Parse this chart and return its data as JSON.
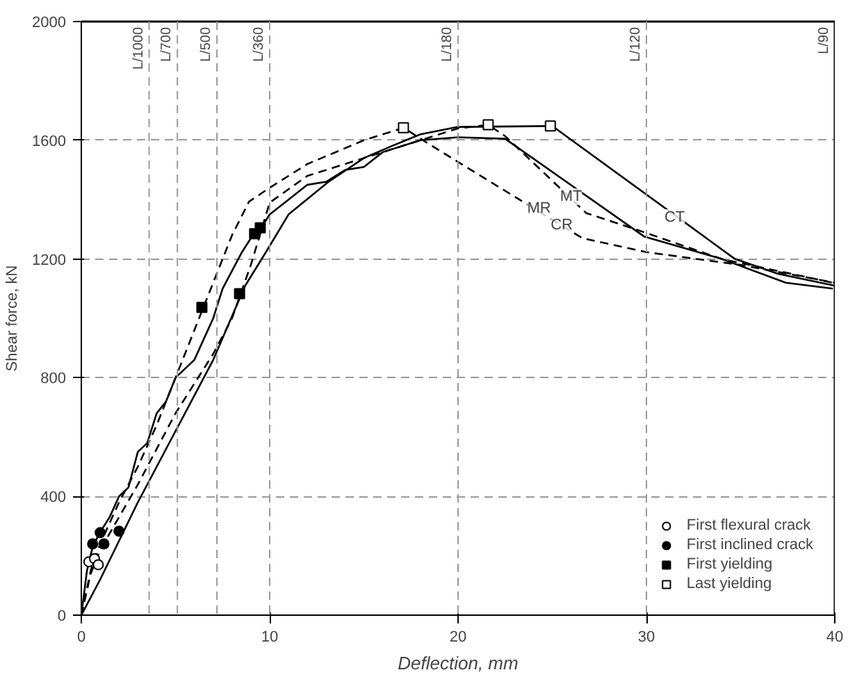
{
  "chart_data": {
    "type": "line",
    "xlabel": "Deflection, mm",
    "ylabel": "Shear force, kN",
    "xlim": [
      0,
      40
    ],
    "ylim": [
      0,
      2000
    ],
    "xticks": [
      0,
      10,
      20,
      30,
      40
    ],
    "yticks": [
      0,
      400,
      800,
      1200,
      1600,
      2000
    ],
    "grid": "y",
    "legend": "bottom right",
    "series": [
      {
        "color": "#000000",
        "line_style": "solid",
        "x": [
          0,
          1,
          2,
          3,
          4,
          5,
          6,
          7,
          8.7,
          9.8,
          11,
          13.1,
          15,
          16.5,
          18,
          20,
          25,
          34.7,
          37,
          40
        ],
        "values": [
          0,
          120,
          250,
          380,
          500,
          620,
          740,
          860,
          1110,
          1223,
          1350,
          1459,
          1540,
          1581,
          1620,
          1645,
          1648,
          1200,
          1150,
          1110
        ]
      },
      {
        "color": "#000000",
        "line_style": "solid",
        "x": [
          0,
          0.3,
          0.6,
          1,
          1.5,
          2,
          2.5,
          3,
          3.5,
          4,
          4.5,
          5,
          5.5,
          6,
          6.5,
          7,
          7.5,
          8,
          8.5,
          9,
          9.5,
          10,
          11,
          12,
          13,
          14,
          15,
          16,
          18,
          20,
          22.5,
          29.9,
          34,
          37.4,
          39.9
        ],
        "values": [
          0,
          150,
          230,
          280,
          330,
          400,
          430,
          550,
          580,
          680,
          720,
          800,
          830,
          860,
          930,
          1000,
          1100,
          1160,
          1220,
          1270,
          1300,
          1350,
          1400,
          1450,
          1460,
          1500,
          1510,
          1560,
          1600,
          1610,
          1605,
          1275,
          1200,
          1120,
          1100
        ]
      },
      {
        "color": "#000000",
        "line_style": "dashed",
        "x": [
          0,
          0.5,
          1,
          2,
          3,
          4,
          5,
          6,
          7,
          8,
          9,
          10,
          12,
          15,
          18,
          20,
          21.6,
          22.5,
          26.8,
          29.7,
          34,
          39.9
        ],
        "values": [
          0,
          140,
          220,
          330,
          440,
          560,
          680,
          780,
          880,
          1000,
          1180,
          1390,
          1480,
          1540,
          1600,
          1640,
          1652,
          1614,
          1355,
          1294,
          1200,
          1120
        ]
      },
      {
        "color": "#000000",
        "line_style": "dashed",
        "x": [
          0,
          0.5,
          1,
          2,
          3,
          4,
          5,
          6,
          6.5,
          7.5,
          8,
          8.9,
          10,
          12,
          15,
          17.1,
          19.2,
          26.6,
          30,
          35,
          40
        ],
        "values": [
          0,
          150,
          240,
          380,
          500,
          640,
          800,
          960,
          1040,
          1200,
          1280,
          1393,
          1440,
          1520,
          1600,
          1642,
          1558,
          1270,
          1223,
          1180,
          1120
        ]
      },
      {
        "type": "scatter",
        "name": "First flexural crack",
        "marker": "circle",
        "color": "#ffffff",
        "x": [
          0.4,
          0.7,
          0.9
        ],
        "values": [
          180,
          190,
          170
        ]
      },
      {
        "type": "scatter",
        "name": "First inclined crack",
        "marker": "circle",
        "color": "#000000",
        "x": [
          0.6,
          1.0,
          1.2,
          2.0
        ],
        "values": [
          240,
          278,
          240,
          283
        ]
      },
      {
        "type": "scatter",
        "name": "First yielding",
        "marker": "square",
        "color": "#000000",
        "x": [
          6.4,
          8.4,
          9.2,
          9.5
        ],
        "values": [
          1037,
          1083,
          1285,
          1305
        ]
      },
      {
        "type": "scatter",
        "name": "Last yielding",
        "marker": "square",
        "color": "#ffffff",
        "x": [
          17.1,
          21.6,
          24.9
        ],
        "values": [
          1642,
          1652,
          1648
        ]
      }
    ],
    "ref_lines": [
      {
        "axis": "x",
        "value": 3.6,
        "label": "L/1000",
        "line_style": "dashed"
      },
      {
        "axis": "x",
        "value": 5.1,
        "label": "L/700",
        "line_style": "dashed"
      },
      {
        "axis": "x",
        "value": 7.2,
        "label": "L/500",
        "line_style": "dashed"
      },
      {
        "axis": "x",
        "value": 10,
        "label": "L/360",
        "line_style": "dashed"
      },
      {
        "axis": "x",
        "value": 20,
        "label": "L/180",
        "line_style": "dashed"
      },
      {
        "axis": "x",
        "value": 30,
        "label": "L/120",
        "line_style": "dashed"
      },
      {
        "axis": "x",
        "value": 40,
        "label": "L/90",
        "line_style": "solid",
        "color": "#000000"
      }
    ],
    "annotations": [
      {
        "text": "CT",
        "x": 31.5,
        "y": 1340
      },
      {
        "text": "MT",
        "x": 26,
        "y": 1410
      },
      {
        "text": "MR",
        "x": 24.3,
        "y": 1370
      },
      {
        "text": "CR",
        "x": 25.5,
        "y": 1313
      }
    ]
  }
}
